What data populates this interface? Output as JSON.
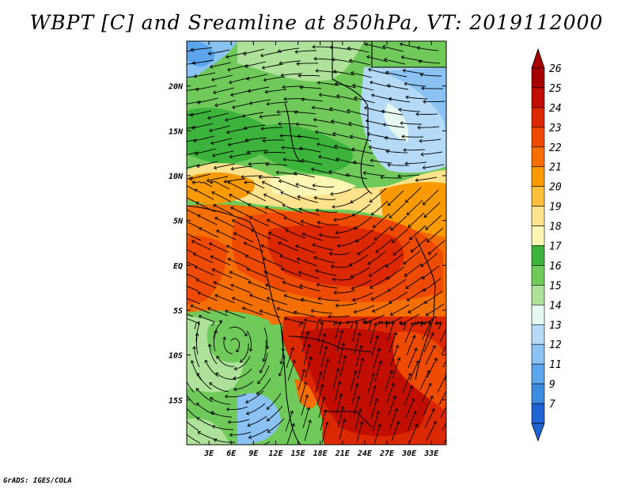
{
  "title": "WBPT [C] and Sreamline at 850hPa, VT: 2019112000",
  "credit": "GrADS: IGES/COLA",
  "map": {
    "lon_range": [
      0,
      35
    ],
    "lat_range": [
      -20,
      25
    ],
    "x_ticks": [
      {
        "value": 3,
        "label": "3E"
      },
      {
        "value": 6,
        "label": "6E"
      },
      {
        "value": 9,
        "label": "9E"
      },
      {
        "value": 12,
        "label": "12E"
      },
      {
        "value": 15,
        "label": "15E"
      },
      {
        "value": 18,
        "label": "18E"
      },
      {
        "value": 21,
        "label": "21E"
      },
      {
        "value": 24,
        "label": "24E"
      },
      {
        "value": 27,
        "label": "27E"
      },
      {
        "value": 30,
        "label": "30E"
      },
      {
        "value": 33,
        "label": "33E"
      }
    ],
    "y_ticks": [
      {
        "value": 20,
        "label": "20N"
      },
      {
        "value": 15,
        "label": "15N"
      },
      {
        "value": 10,
        "label": "10N"
      },
      {
        "value": 5,
        "label": "5N"
      },
      {
        "value": 0,
        "label": "EQ"
      },
      {
        "value": -5,
        "label": "5S"
      },
      {
        "value": -10,
        "label": "10S"
      },
      {
        "value": -15,
        "label": "15S"
      }
    ]
  },
  "colorbar": {
    "levels": [
      {
        "label": "26",
        "color": "#a50000"
      },
      {
        "label": "25",
        "color": "#c10e00"
      },
      {
        "label": "24",
        "color": "#dc2800"
      },
      {
        "label": "23",
        "color": "#ee4a00"
      },
      {
        "label": "22",
        "color": "#f46e00"
      },
      {
        "label": "21",
        "color": "#f89a00"
      },
      {
        "label": "20",
        "color": "#fbbf3c"
      },
      {
        "label": "19",
        "color": "#fee28c"
      },
      {
        "label": "18",
        "color": "#fbf6b4"
      },
      {
        "label": "17",
        "color": "#3cb43c"
      },
      {
        "label": "16",
        "color": "#6fca5a"
      },
      {
        "label": "15",
        "color": "#aee29a"
      },
      {
        "label": "14",
        "color": "#e6f8f0"
      },
      {
        "label": "13",
        "color": "#b4daf8"
      },
      {
        "label": "12",
        "color": "#8ac2f4"
      },
      {
        "label": "11",
        "color": "#5aa5ec"
      },
      {
        "label": "9",
        "color": "#3c8ce0"
      },
      {
        "label": "7",
        "color": "#1e64d2"
      }
    ],
    "bottom_color": "#1e64d2",
    "top_color": "#a50000"
  }
}
